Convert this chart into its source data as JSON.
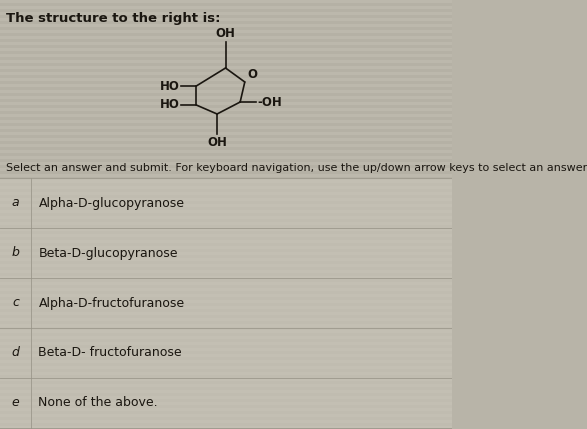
{
  "title": "The structure to the right is:",
  "instruction": "Select an answer and submit. For keyboard navigation, use the up/down arrow keys to select an answer.",
  "options": [
    {
      "label": "a",
      "text": "Alpha-D-glucopyranose"
    },
    {
      "label": "b",
      "text": "Beta-D-glucopyranose"
    },
    {
      "label": "c",
      "text": "Alpha-D-fructofuranose"
    },
    {
      "label": "d",
      "text": "Beta-D- fructofuranose"
    },
    {
      "label": "e",
      "text": "None of the above."
    }
  ],
  "bg_color": "#b8b4a8",
  "stripe_light": "#c0bcb0",
  "stripe_dark": "#b0ac9f",
  "row_bg": "#c8c4b8",
  "row_sep_color": "#989488",
  "text_color": "#1a1610",
  "title_fontsize": 9.5,
  "option_fontsize": 9,
  "label_fontsize": 9,
  "instruction_fontsize": 8,
  "mol_fontsize": 8.5
}
